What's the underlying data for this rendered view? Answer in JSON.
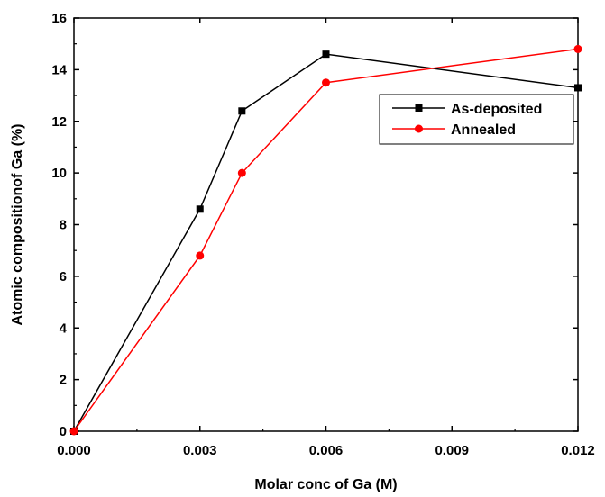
{
  "chart_data": {
    "type": "line",
    "title": "",
    "xlabel": "Molar conc of Ga (M)",
    "ylabel": "Atomic compositionof Ga (%)",
    "xlim": [
      0,
      0.012
    ],
    "ylim": [
      0,
      16
    ],
    "xticks": [
      0,
      0.003,
      0.006,
      0.009,
      0.012
    ],
    "xtick_labels": [
      "0.000",
      "0.003",
      "0.006",
      "0.009",
      "0.012"
    ],
    "yticks": [
      0,
      2,
      4,
      6,
      8,
      10,
      12,
      14,
      16
    ],
    "ytick_labels": [
      "0",
      "2",
      "4",
      "6",
      "8",
      "10",
      "12",
      "14",
      "16"
    ],
    "grid": false,
    "legend_position": "top-right",
    "series": [
      {
        "name": "As-deposited",
        "color": "#000000",
        "marker": "square",
        "x": [
          0,
          0.003,
          0.004,
          0.006,
          0.012
        ],
        "y": [
          0,
          8.6,
          12.4,
          14.6,
          13.3
        ]
      },
      {
        "name": "Annealed",
        "color": "#ff0000",
        "marker": "circle",
        "x": [
          0,
          0.003,
          0.004,
          0.006,
          0.012
        ],
        "y": [
          0,
          6.8,
          10.0,
          13.5,
          14.8
        ]
      }
    ]
  }
}
